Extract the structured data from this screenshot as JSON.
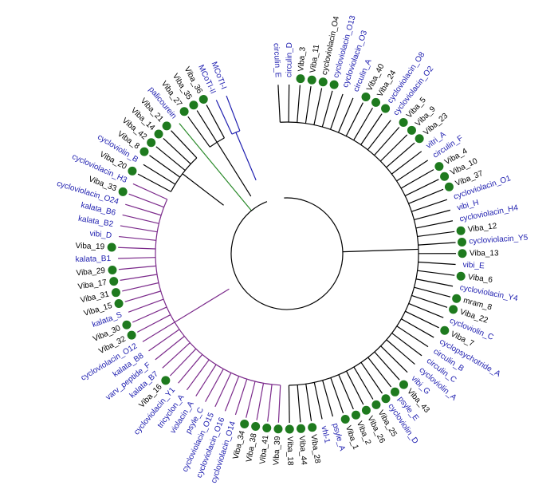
{
  "leaves": [
    {
      "label": "circulin_E",
      "color": "#2020b0",
      "dot": false,
      "branch": "#000000"
    },
    {
      "label": "circulin_D",
      "color": "#2020b0",
      "dot": false,
      "branch": "#000000"
    },
    {
      "label": "Viba_3",
      "color": "#000000",
      "dot": true,
      "branch": "#000000"
    },
    {
      "label": "Viba_11",
      "color": "#000000",
      "dot": true,
      "branch": "#000000"
    },
    {
      "label": "cycloviolacin_O4",
      "color": "#000000",
      "dot": true,
      "branch": "#000000"
    },
    {
      "label": "cycloviolacin_O13",
      "color": "#2020b0",
      "dot": true,
      "branch": "#000000"
    },
    {
      "label": "cycloviolacin_O3",
      "color": "#2020b0",
      "dot": false,
      "branch": "#000000"
    },
    {
      "label": "circulin_A",
      "color": "#2020b0",
      "dot": false,
      "branch": "#000000"
    },
    {
      "label": "Viba_40",
      "color": "#000000",
      "dot": true,
      "branch": "#000000"
    },
    {
      "label": "Viba_24",
      "color": "#000000",
      "dot": true,
      "branch": "#000000"
    },
    {
      "label": "cycloviolacin_O8",
      "color": "#2020b0",
      "dot": true,
      "branch": "#000000"
    },
    {
      "label": "cycloviolacin_O2",
      "color": "#2020b0",
      "dot": false,
      "branch": "#000000"
    },
    {
      "label": "Viba_5",
      "color": "#000000",
      "dot": true,
      "branch": "#000000"
    },
    {
      "label": "Viba_9",
      "color": "#000000",
      "dot": true,
      "branch": "#000000"
    },
    {
      "label": "Viba_23",
      "color": "#000000",
      "dot": true,
      "branch": "#000000"
    },
    {
      "label": "vitri_A",
      "color": "#2020b0",
      "dot": false,
      "branch": "#000000"
    },
    {
      "label": "circulin_F",
      "color": "#2020b0",
      "dot": false,
      "branch": "#000000"
    },
    {
      "label": "Viba_4",
      "color": "#000000",
      "dot": true,
      "branch": "#000000"
    },
    {
      "label": "Viba_10",
      "color": "#000000",
      "dot": true,
      "branch": "#000000"
    },
    {
      "label": "Viba_37",
      "color": "#000000",
      "dot": true,
      "branch": "#000000"
    },
    {
      "label": "cycloviolacin_O1",
      "color": "#2020b0",
      "dot": false,
      "branch": "#000000"
    },
    {
      "label": "vibi_H",
      "color": "#2020b0",
      "dot": false,
      "branch": "#000000"
    },
    {
      "label": "cycloviolacin_H4",
      "color": "#2020b0",
      "dot": false,
      "branch": "#000000"
    },
    {
      "label": "Viba_12",
      "color": "#000000",
      "dot": true,
      "branch": "#000000"
    },
    {
      "label": "cycloviolacin_Y5",
      "color": "#2020b0",
      "dot": true,
      "branch": "#000000"
    },
    {
      "label": "Viba_13",
      "color": "#000000",
      "dot": true,
      "branch": "#000000"
    },
    {
      "label": "vibi_E",
      "color": "#2020b0",
      "dot": false,
      "branch": "#000000"
    },
    {
      "label": "Viba_6",
      "color": "#000000",
      "dot": true,
      "branch": "#000000"
    },
    {
      "label": "cycloviolacin_Y4",
      "color": "#2020b0",
      "dot": false,
      "branch": "#000000"
    },
    {
      "label": "mram_8",
      "color": "#000000",
      "dot": true,
      "branch": "#000000"
    },
    {
      "label": "Viba_22",
      "color": "#000000",
      "dot": true,
      "branch": "#000000"
    },
    {
      "label": "cycloviolin_C",
      "color": "#2020b0",
      "dot": false,
      "branch": "#000000"
    },
    {
      "label": "Viba_7",
      "color": "#000000",
      "dot": true,
      "branch": "#000000"
    },
    {
      "label": "cyclopsychotride_A",
      "color": "#2020b0",
      "dot": false,
      "branch": "#000000"
    },
    {
      "label": "circulin_B",
      "color": "#2020b0",
      "dot": false,
      "branch": "#000000"
    },
    {
      "label": "circulin_C",
      "color": "#2020b0",
      "dot": false,
      "branch": "#000000"
    },
    {
      "label": "cycloviolin_A",
      "color": "#2020b0",
      "dot": false,
      "branch": "#000000"
    },
    {
      "label": "vibi_G",
      "color": "#2020b0",
      "dot": false,
      "branch": "#000000"
    },
    {
      "label": "Viba_43",
      "color": "#000000",
      "dot": true,
      "branch": "#000000"
    },
    {
      "label": "psyle_E",
      "color": "#2020b0",
      "dot": true,
      "branch": "#000000"
    },
    {
      "label": "cycloviolin_D",
      "color": "#2020b0",
      "dot": true,
      "branch": "#000000"
    },
    {
      "label": "Viba_25",
      "color": "#000000",
      "dot": true,
      "branch": "#000000"
    },
    {
      "label": "Viba_26",
      "color": "#000000",
      "dot": true,
      "branch": "#000000"
    },
    {
      "label": "Viba_2",
      "color": "#000000",
      "dot": true,
      "branch": "#000000"
    },
    {
      "label": "Viba_1",
      "color": "#000000",
      "dot": true,
      "branch": "#000000"
    },
    {
      "label": "psyle_A",
      "color": "#2020b0",
      "dot": false,
      "branch": "#000000"
    },
    {
      "label": "vhl-1",
      "color": "#2020b0",
      "dot": false,
      "branch": "#000000"
    },
    {
      "label": "Viba_28",
      "color": "#000000",
      "dot": true,
      "branch": "#000000"
    },
    {
      "label": "Viba_44",
      "color": "#000000",
      "dot": true,
      "branch": "#000000"
    },
    {
      "label": "Viba_18",
      "color": "#000000",
      "dot": true,
      "branch": "#000000"
    },
    {
      "label": "Viba_39",
      "color": "#000000",
      "dot": true,
      "branch": "#7b2a8b"
    },
    {
      "label": "Viba_41",
      "color": "#000000",
      "dot": true,
      "branch": "#7b2a8b"
    },
    {
      "label": "Viba_38",
      "color": "#000000",
      "dot": true,
      "branch": "#7b2a8b"
    },
    {
      "label": "Viba_34",
      "color": "#000000",
      "dot": true,
      "branch": "#7b2a8b"
    },
    {
      "label": "cycloviolacin_O14",
      "color": "#2020b0",
      "dot": false,
      "branch": "#7b2a8b"
    },
    {
      "label": "cycloviolacin_O16",
      "color": "#2020b0",
      "dot": false,
      "branch": "#7b2a8b"
    },
    {
      "label": "cycloviolacin_O15",
      "color": "#2020b0",
      "dot": false,
      "branch": "#7b2a8b"
    },
    {
      "label": "psyle_C",
      "color": "#2020b0",
      "dot": false,
      "branch": "#7b2a8b"
    },
    {
      "label": "violacin_A",
      "color": "#2020b0",
      "dot": false,
      "branch": "#7b2a8b"
    },
    {
      "label": "tricyclon_A",
      "color": "#2020b0",
      "dot": false,
      "branch": "#7b2a8b"
    },
    {
      "label": "cycloviolacin_Y1",
      "color": "#2020b0",
      "dot": false,
      "branch": "#7b2a8b"
    },
    {
      "label": "Viba_16",
      "color": "#000000",
      "dot": true,
      "branch": "#7b2a8b"
    },
    {
      "label": "kalata_B7",
      "color": "#2020b0",
      "dot": false,
      "branch": "#7b2a8b"
    },
    {
      "label": "varv_peptide_F",
      "color": "#2020b0",
      "dot": false,
      "branch": "#7b2a8b"
    },
    {
      "label": "kalata_B8",
      "color": "#2020b0",
      "dot": false,
      "branch": "#7b2a8b"
    },
    {
      "label": "cycloviolacin_O12",
      "color": "#2020b0",
      "dot": false,
      "branch": "#7b2a8b"
    },
    {
      "label": "Viba_32",
      "color": "#000000",
      "dot": true,
      "branch": "#7b2a8b"
    },
    {
      "label": "Viba_30",
      "color": "#000000",
      "dot": true,
      "branch": "#7b2a8b"
    },
    {
      "label": "kalata_S",
      "color": "#2020b0",
      "dot": false,
      "branch": "#7b2a8b"
    },
    {
      "label": "Viba_15",
      "color": "#000000",
      "dot": true,
      "branch": "#7b2a8b"
    },
    {
      "label": "Viba_31",
      "color": "#000000",
      "dot": true,
      "branch": "#7b2a8b"
    },
    {
      "label": "Viba_17",
      "color": "#000000",
      "dot": true,
      "branch": "#7b2a8b"
    },
    {
      "label": "Viba_29",
      "color": "#000000",
      "dot": true,
      "branch": "#7b2a8b"
    },
    {
      "label": "kalata_B1",
      "color": "#2020b0",
      "dot": false,
      "branch": "#7b2a8b"
    },
    {
      "label": "Viba_19",
      "color": "#000000",
      "dot": true,
      "branch": "#7b2a8b"
    },
    {
      "label": "vibi_D",
      "color": "#2020b0",
      "dot": false,
      "branch": "#7b2a8b"
    },
    {
      "label": "kalata_B2",
      "color": "#2020b0",
      "dot": false,
      "branch": "#7b2a8b"
    },
    {
      "label": "kalata_B6",
      "color": "#2020b0",
      "dot": false,
      "branch": "#7b2a8b"
    },
    {
      "label": "cycloviolacin_O24",
      "color": "#2020b0",
      "dot": false,
      "branch": "#7b2a8b"
    },
    {
      "label": "Viba_33",
      "color": "#000000",
      "dot": true,
      "branch": "#7b2a8b"
    },
    {
      "label": "cycloviolacin_H3",
      "color": "#2020b0",
      "dot": false,
      "branch": "#7b2a8b"
    },
    {
      "label": "Viba_20",
      "color": "#000000",
      "dot": true,
      "branch": "#000000"
    },
    {
      "label": "cycloviolin_B",
      "color": "#2020b0",
      "dot": false,
      "branch": "#000000"
    },
    {
      "label": "Viba_8",
      "color": "#000000",
      "dot": true,
      "branch": "#000000"
    },
    {
      "label": "Viba_42",
      "color": "#000000",
      "dot": true,
      "branch": "#000000"
    },
    {
      "label": "Viba_14",
      "color": "#000000",
      "dot": true,
      "branch": "#000000"
    },
    {
      "label": "Viba_21",
      "color": "#000000",
      "dot": true,
      "branch": "#000000"
    },
    {
      "label": "palicourein",
      "color": "#2020b0",
      "dot": false,
      "branch": "#2a8a2a"
    },
    {
      "label": "Viba_27",
      "color": "#000000",
      "dot": true,
      "branch": "#000000"
    },
    {
      "label": "Viba_35",
      "color": "#000000",
      "dot": true,
      "branch": "#000000"
    },
    {
      "label": "Viba_36",
      "color": "#000000",
      "dot": true,
      "branch": "#000000"
    },
    {
      "label": "MCoTI-II",
      "color": "#2020b0",
      "dot": false,
      "branch": "#2020b0"
    },
    {
      "label": "MCoTI-I",
      "color": "#2020b0",
      "dot": false,
      "branch": "#2020b0"
    }
  ]
}
